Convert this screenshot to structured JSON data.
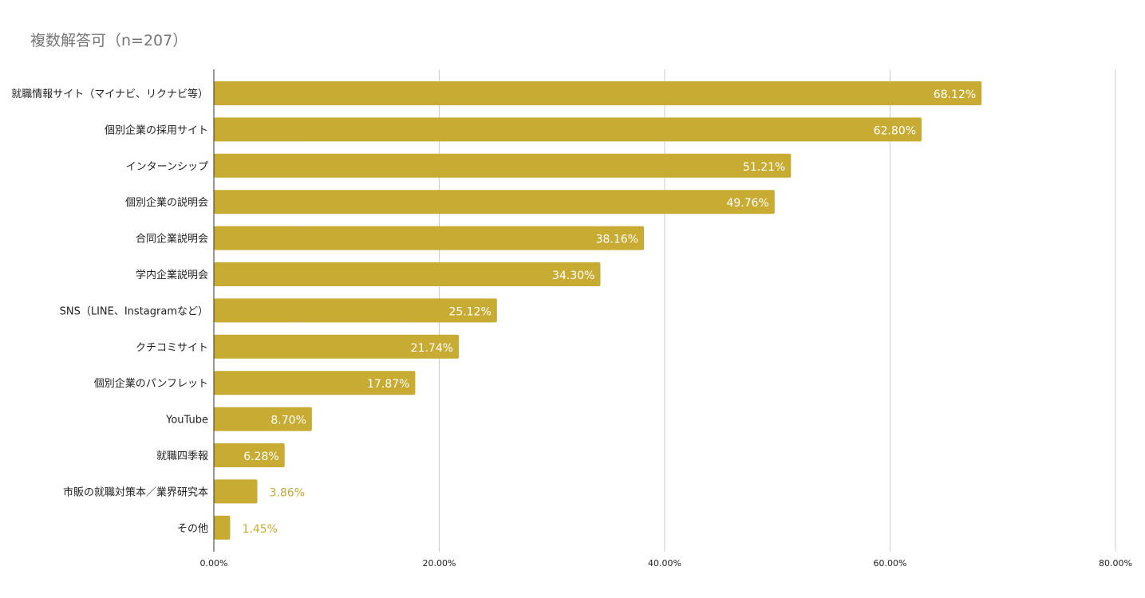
{
  "chart_data": {
    "type": "bar",
    "orientation": "horizontal",
    "title": "複数解答可（n=207）",
    "categories": [
      "就職情報サイト（マイナビ、リクナビ等）",
      "個別企業の採用サイト",
      "インターンシップ",
      "個別企業の説明会",
      "合同企業説明会",
      "学内企業説明会",
      "SNS（LINE、Instagramなど）",
      "クチコミサイト",
      "個別企業のパンフレット",
      "YouTube",
      "就職四季報",
      "市販の就職対策本／業界研究本",
      "その他"
    ],
    "values": [
      68.12,
      62.8,
      51.21,
      49.76,
      38.16,
      34.3,
      25.12,
      21.74,
      17.87,
      8.7,
      6.28,
      3.86,
      1.45
    ],
    "value_labels": [
      "68.12%",
      "62.80%",
      "51.21%",
      "49.76%",
      "38.16%",
      "34.30%",
      "25.12%",
      "21.74%",
      "17.87%",
      "8.70%",
      "6.28%",
      "3.86%",
      "1.45%"
    ],
    "xlim": [
      0,
      80
    ],
    "xticks": [
      0,
      20,
      40,
      60,
      80
    ],
    "xtick_labels": [
      "0.00%",
      "20.00%",
      "40.00%",
      "60.00%",
      "80.00%"
    ],
    "grid": true,
    "legend": "none",
    "bar_color": "#c7ab32",
    "label_inside_color": "#ffffff"
  }
}
